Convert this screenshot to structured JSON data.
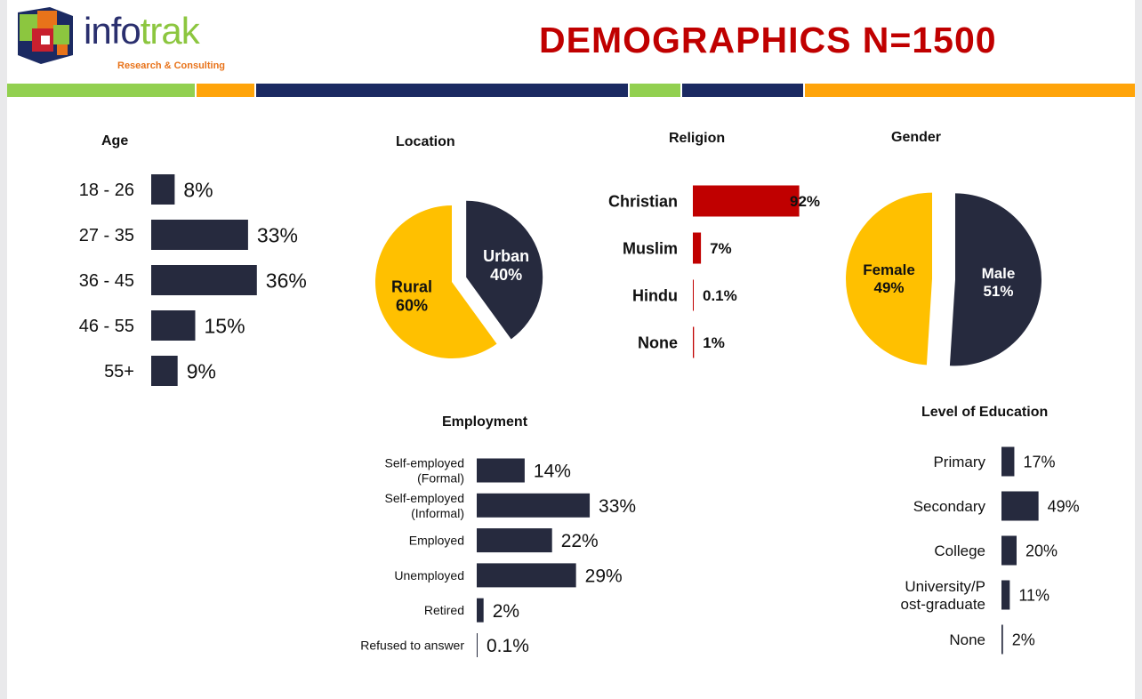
{
  "header": {
    "logo_text_part1": "info",
    "logo_text_part2": "trak",
    "logo_subtitle": "Research & Consulting",
    "title": "DEMOGRAPHICS N=1500",
    "band_colors": [
      "#92d050",
      "#ffa40a",
      "#1b2a62",
      "#92d050",
      "#1b2a62",
      "#ffa40a"
    ]
  },
  "colors": {
    "navy": "#262a3e",
    "red": "#c00000",
    "yellow": "#ffc000",
    "crimson": "#c00000"
  },
  "chart_data": [
    {
      "id": "age",
      "type": "bar",
      "orientation": "horizontal",
      "title": "Age",
      "categories": [
        "18 - 26",
        "27 - 35",
        "36 - 45",
        "46 - 55",
        "55+"
      ],
      "values": [
        8,
        33,
        36,
        15,
        9
      ],
      "labels": [
        "8%",
        "33%",
        "36%",
        "15%",
        "9%"
      ]
    },
    {
      "id": "location",
      "type": "pie",
      "title": "Location",
      "slices": [
        {
          "name": "Urban",
          "value": 40,
          "label": "40%"
        },
        {
          "name": "Rural",
          "value": 60,
          "label": "60%"
        }
      ]
    },
    {
      "id": "religion",
      "type": "bar",
      "orientation": "horizontal",
      "title": "Religion",
      "categories": [
        "Christian",
        "Muslim",
        "Hindu",
        "None"
      ],
      "values": [
        92,
        7,
        0.1,
        1
      ],
      "labels": [
        "92%",
        "7%",
        "0.1%",
        "1%"
      ]
    },
    {
      "id": "gender",
      "type": "pie",
      "title": "Gender",
      "slices": [
        {
          "name": "Male",
          "value": 51,
          "label": "51%"
        },
        {
          "name": "Female",
          "value": 49,
          "label": "49%"
        }
      ]
    },
    {
      "id": "employment",
      "type": "bar",
      "orientation": "horizontal",
      "title": "Employment",
      "categories": [
        "Self-employed (Formal)",
        "Self-employed (Informal)",
        "Employed",
        "Unemployed",
        "Retired",
        "Refused to answer"
      ],
      "category_lines": [
        [
          "Self-employed",
          "(Formal)"
        ],
        [
          "Self-employed",
          "(Informal)"
        ],
        [
          "Employed"
        ],
        [
          "Unemployed"
        ],
        [
          "Retired"
        ],
        [
          "Refused to answer"
        ]
      ],
      "values": [
        14,
        33,
        22,
        29,
        2,
        0.1
      ],
      "labels": [
        "14%",
        "33%",
        "22%",
        "29%",
        "2%",
        "0.1%"
      ]
    },
    {
      "id": "education",
      "type": "bar",
      "orientation": "horizontal",
      "title": "Level of Education",
      "categories": [
        "Primary",
        "Secondary",
        "College",
        "University/Post-graduate",
        "None"
      ],
      "category_lines": [
        [
          "Primary"
        ],
        [
          "Secondary"
        ],
        [
          "College"
        ],
        [
          "University/P",
          "ost-graduate"
        ],
        [
          "None"
        ]
      ],
      "values": [
        17,
        49,
        20,
        11,
        2
      ],
      "labels": [
        "17%",
        "49%",
        "20%",
        "11%",
        "2%"
      ]
    }
  ]
}
